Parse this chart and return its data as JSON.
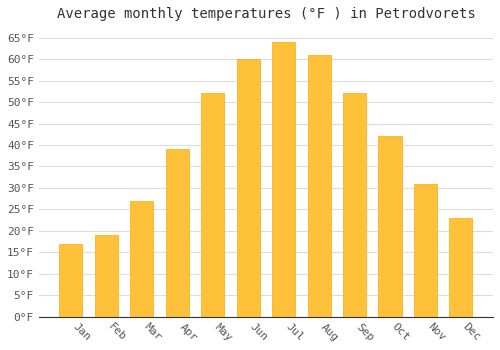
{
  "title": "Average monthly temperatures (°F ) in Petrodvorets",
  "months": [
    "Jan",
    "Feb",
    "Mar",
    "Apr",
    "May",
    "Jun",
    "Jul",
    "Aug",
    "Sep",
    "Oct",
    "Nov",
    "Dec"
  ],
  "values": [
    17,
    19,
    27,
    39,
    52,
    60,
    64,
    61,
    52,
    42,
    31,
    23
  ],
  "bar_color": "#FFC03A",
  "bar_edge_color": "#FFA800",
  "background_color": "#FFFFFF",
  "grid_color": "#DDDDDD",
  "yticks": [
    0,
    5,
    10,
    15,
    20,
    25,
    30,
    35,
    40,
    45,
    50,
    55,
    60,
    65
  ],
  "ylim": [
    0,
    67
  ],
  "title_fontsize": 10,
  "tick_fontsize": 8,
  "font_family": "monospace"
}
